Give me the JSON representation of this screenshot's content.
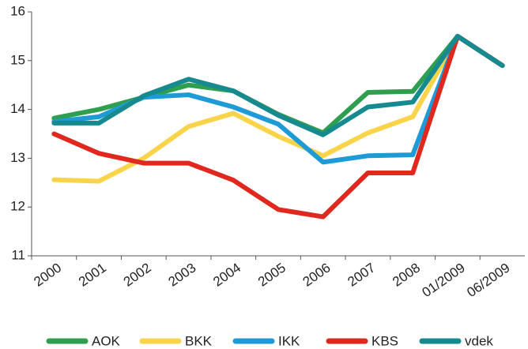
{
  "chart_data": {
    "type": "line",
    "categories": [
      "2000",
      "2001",
      "2002",
      "2003",
      "2004",
      "2005",
      "2006",
      "2007",
      "2008",
      "01/2009",
      "06/2009"
    ],
    "series": [
      {
        "name": "AOK",
        "color": "#2e9e4f",
        "values": [
          13.82,
          14.0,
          14.25,
          14.5,
          14.38,
          13.9,
          13.52,
          14.35,
          14.37,
          15.5,
          14.9
        ]
      },
      {
        "name": "BKK",
        "color": "#f9d44a",
        "values": [
          12.56,
          12.53,
          13.0,
          13.65,
          13.92,
          13.45,
          13.05,
          13.52,
          13.85,
          15.5,
          14.9
        ]
      },
      {
        "name": "IKK",
        "color": "#1e9ad6",
        "values": [
          13.75,
          13.85,
          14.25,
          14.3,
          14.05,
          13.7,
          12.92,
          13.05,
          13.07,
          15.5,
          14.9
        ]
      },
      {
        "name": "KBS",
        "color": "#e0281e",
        "values": [
          13.5,
          13.1,
          12.9,
          12.9,
          12.55,
          11.95,
          11.8,
          12.7,
          12.7,
          15.5,
          14.9
        ]
      },
      {
        "name": "vdek",
        "color": "#168a8f",
        "values": [
          13.72,
          13.72,
          14.28,
          14.62,
          14.38,
          13.88,
          13.48,
          14.05,
          14.15,
          15.5,
          14.9
        ]
      }
    ],
    "ylim": [
      11,
      16
    ],
    "yticks": [
      11,
      12,
      13,
      14,
      15,
      16
    ],
    "grid": false
  }
}
